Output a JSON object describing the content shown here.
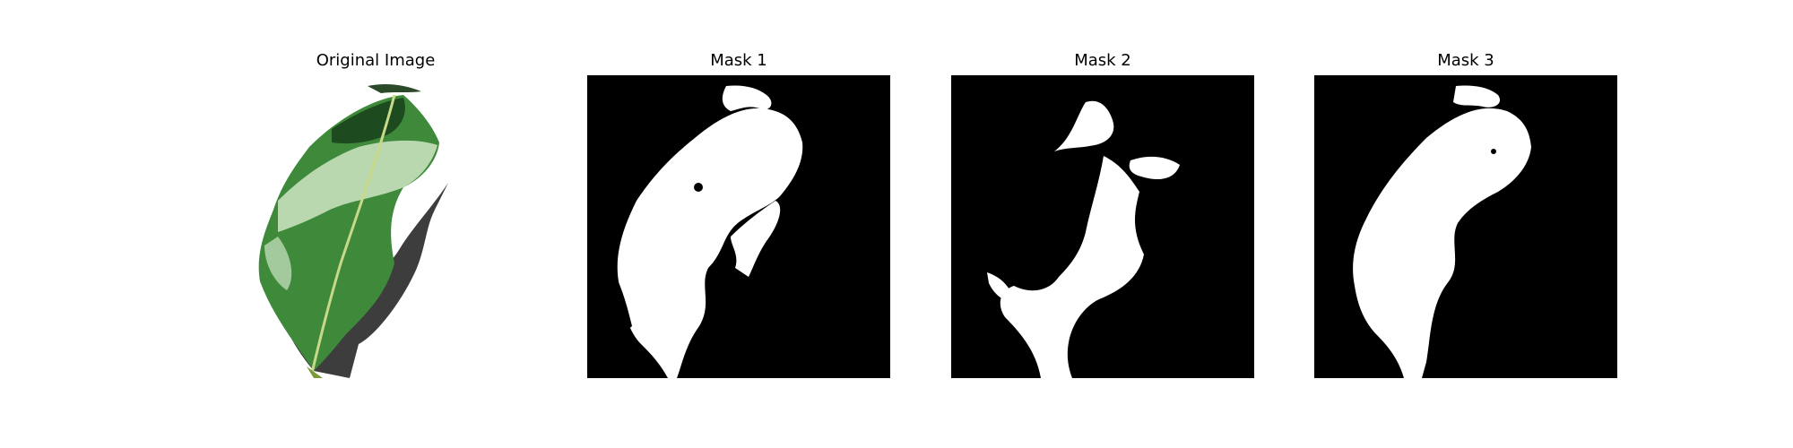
{
  "figure": {
    "panels": [
      {
        "title": "Original Image",
        "content": "leaf-photo"
      },
      {
        "title": "Mask 1",
        "content": "binary-mask"
      },
      {
        "title": "Mask 2",
        "content": "binary-mask"
      },
      {
        "title": "Mask 3",
        "content": "binary-mask"
      }
    ]
  },
  "colors": {
    "mask_background": "#000000",
    "mask_foreground": "#ffffff",
    "leaf_green": "#3e8a3a",
    "leaf_highlight": "#cfe5c6",
    "leaf_shadow": "#1d4a1f"
  }
}
